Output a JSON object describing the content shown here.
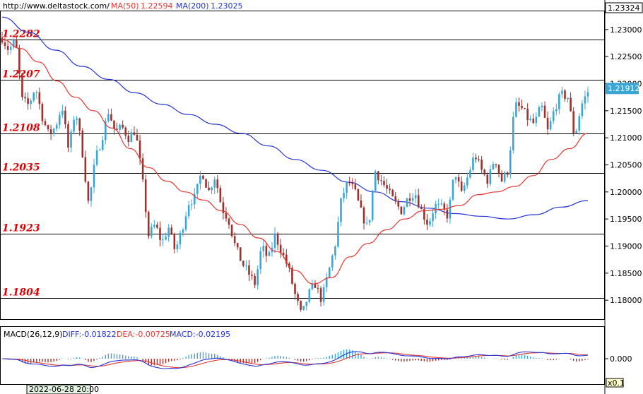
{
  "header": {
    "url": "http://www.deltastock.com/",
    "ma50_label": "MA(50)",
    "ma50_value": "1.22594",
    "ma200_label": "MA(200)",
    "ma200_value": "1.23025"
  },
  "macd_header": {
    "name": "MACD(26,12,9)",
    "diff": "DIFF:-0.01822",
    "dea": "DEA:-0.00725",
    "macd": "MACD:-0.02195"
  },
  "footer": {
    "date": "2022-06-28 20:00",
    "zoom": "x0.1"
  },
  "colors": {
    "up": "#3aa6d8",
    "down": "#a0302c",
    "ma50": "#e8352f",
    "ma200": "#2233dd",
    "level": "#e00000"
  },
  "chart_data": {
    "type": "line",
    "price_axis": {
      "ylim": [
        1.1765,
        1.2335
      ],
      "ticks": [
        "1.23000",
        "1.22500",
        "1.22000",
        "1.21500",
        "1.21000",
        "1.20500",
        "1.20000",
        "1.19500",
        "1.19000",
        "1.18500",
        "1.18000"
      ],
      "top_label": "1.23324",
      "current_price": "1.21912"
    },
    "levels": [
      {
        "label": "1.2282",
        "value": 1.2282
      },
      {
        "label": "1.2207",
        "value": 1.2207
      },
      {
        "label": "1.2108",
        "value": 1.2108
      },
      {
        "label": "1.2035",
        "value": 1.2035
      },
      {
        "label": "1.1923",
        "value": 1.1923
      },
      {
        "label": "1.1804",
        "value": 1.1804
      }
    ],
    "price_path": [
      1.2285,
      1.2262,
      1.228,
      1.217,
      1.216,
      1.2195,
      1.214,
      1.2105,
      1.212,
      1.216,
      1.2075,
      1.2155,
      1.208,
      1.1975,
      1.206,
      1.21,
      1.215,
      1.211,
      1.212,
      1.21,
      1.2115,
      1.203,
      1.192,
      1.194,
      1.1905,
      1.1935,
      1.189,
      1.193,
      1.198,
      1.199,
      1.204,
      1.2,
      1.203,
      1.197,
      1.195,
      1.19,
      1.187,
      1.185,
      1.183,
      1.19,
      1.1875,
      1.192,
      1.189,
      1.186,
      1.181,
      1.177,
      1.181,
      1.183,
      1.18,
      1.185,
      1.19,
      1.199,
      1.202,
      1.2,
      1.196,
      1.193,
      1.204,
      1.202,
      1.2,
      1.198,
      1.1965,
      1.199,
      1.2,
      1.1965,
      1.194,
      1.1975,
      1.197,
      1.1955,
      1.204,
      1.1995,
      1.203,
      1.207,
      1.204,
      1.202,
      1.2065,
      1.202,
      1.204,
      1.216,
      1.2155,
      1.2135,
      1.2125,
      1.216,
      1.211,
      1.2155,
      1.218,
      1.2175,
      1.21,
      1.216,
      1.2185
    ],
    "ma50": [
      1.2282,
      1.2265,
      1.224,
      1.2205,
      1.2175,
      1.215,
      1.2118,
      1.208,
      1.2045,
      1.202,
      1.2,
      1.1985,
      1.1965,
      1.194,
      1.1915,
      1.189,
      1.1855,
      1.183,
      1.1842,
      1.188,
      1.1905,
      1.193,
      1.195,
      1.1965,
      1.1968,
      1.1975,
      1.1995,
      1.2,
      1.201,
      1.203,
      1.206,
      1.208,
      1.2108
    ],
    "ma200": [
      1.2323,
      1.2295,
      1.2262,
      1.2232,
      1.2208,
      1.2183,
      1.2162,
      1.2143,
      1.2125,
      1.2108,
      1.2085,
      1.206,
      1.204,
      1.2018,
      1.2,
      1.1982,
      1.197,
      1.196,
      1.1955,
      1.195,
      1.1958,
      1.1972,
      1.1984
    ],
    "macd_axis": {
      "ticks": [
        "0.000"
      ]
    }
  }
}
